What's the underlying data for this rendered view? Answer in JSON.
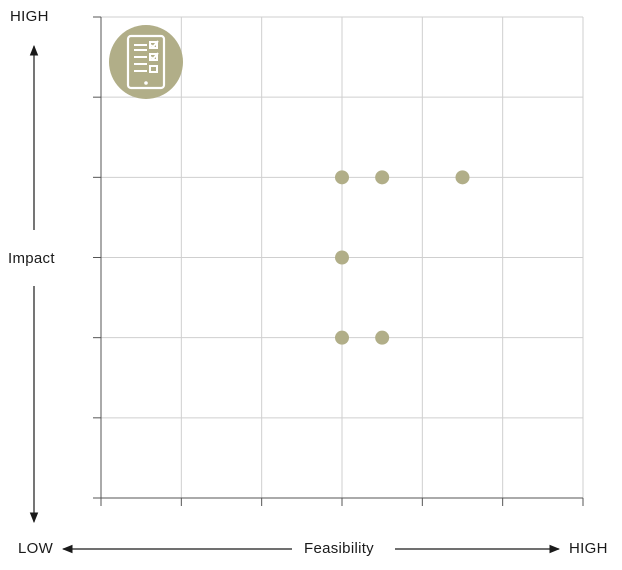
{
  "chart_data": {
    "type": "scatter",
    "xlabel": "Feasibility",
    "ylabel": "Impact",
    "x_low_label": "LOW",
    "x_high_label": "HIGH",
    "y_high_label": "HIGH",
    "xlim": [
      0,
      6
    ],
    "ylim": [
      0,
      6
    ],
    "grid": true,
    "points": [
      {
        "x": 3.0,
        "y": 4
      },
      {
        "x": 3.5,
        "y": 4
      },
      {
        "x": 4.5,
        "y": 4
      },
      {
        "x": 3.0,
        "y": 3
      },
      {
        "x": 3.0,
        "y": 2
      },
      {
        "x": 3.5,
        "y": 2
      }
    ],
    "marker_color": "#b1ae88",
    "badge_color": "#b1ae88",
    "badge_icon": "tablet-checklist-icon"
  }
}
